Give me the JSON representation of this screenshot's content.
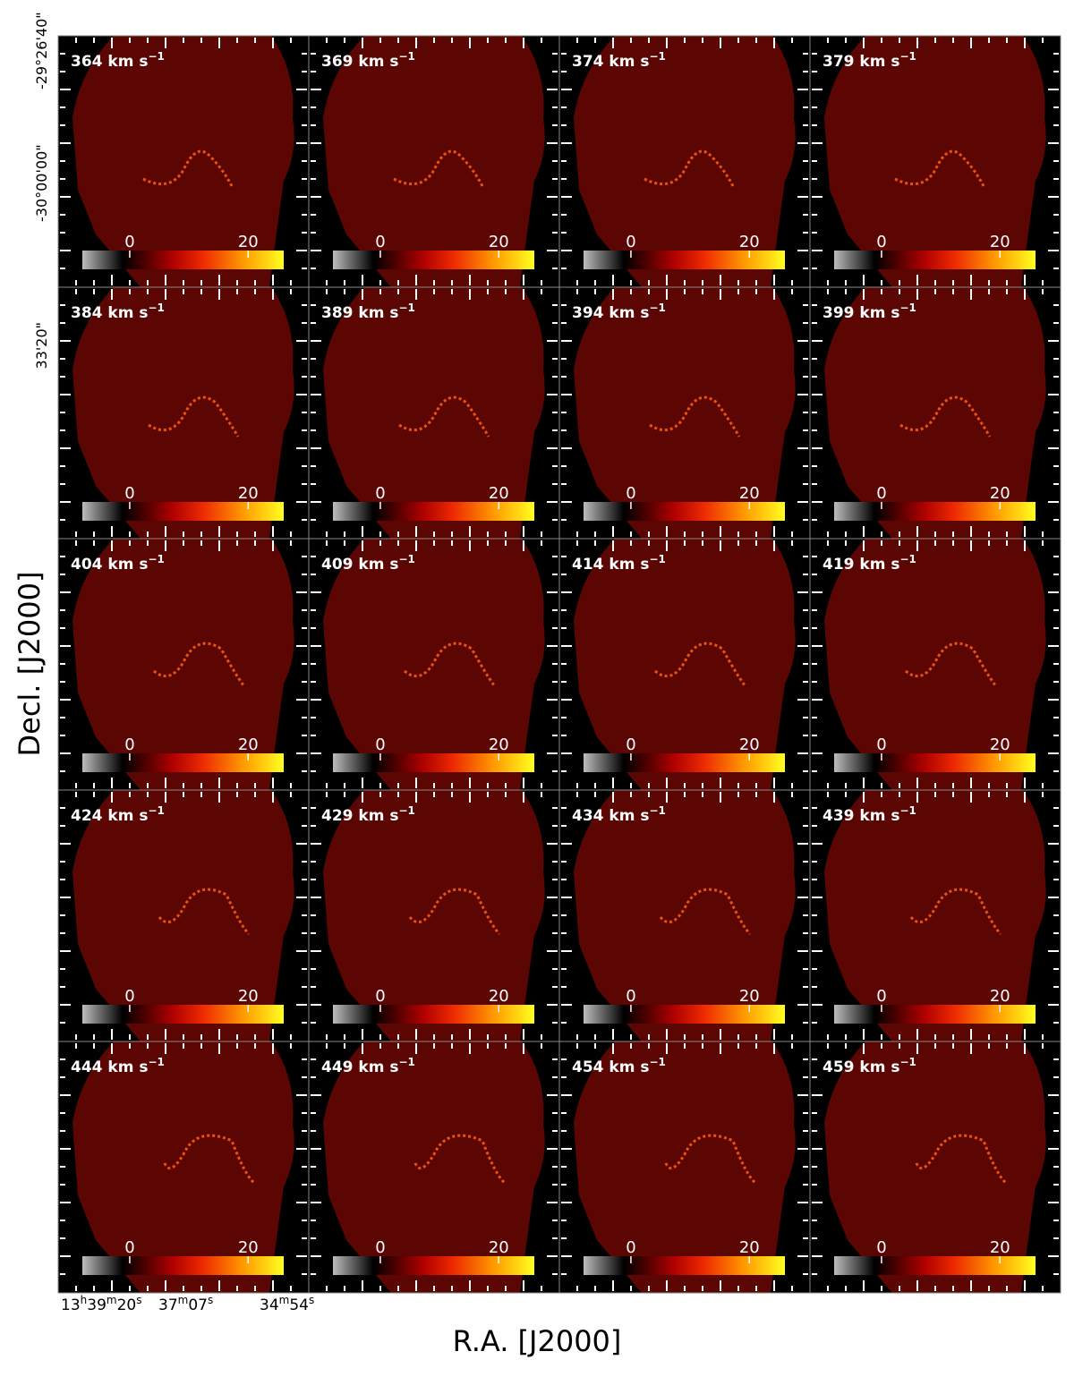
{
  "figure": {
    "x_label": "R.A. [J2000]",
    "y_label": "Decl. [J2000]",
    "ra_ticks": [
      [
        "13",
        "h",
        "39",
        "m",
        "20",
        "s"
      ],
      [
        "37",
        "m",
        "07",
        "s"
      ],
      [
        "34",
        "m",
        "54",
        "s"
      ]
    ],
    "dec_ticks": [
      "-30°00'00\"",
      "-29°26'40\"",
      "33'20\""
    ],
    "colorbar_lim": [
      -8,
      26
    ],
    "colorbar_ticks": [
      0,
      20
    ],
    "panels": [
      {
        "velocity": 364,
        "unit": "km s",
        "exponent": "−1"
      },
      {
        "velocity": 369,
        "unit": "km s",
        "exponent": "−1"
      },
      {
        "velocity": 374,
        "unit": "km s",
        "exponent": "−1"
      },
      {
        "velocity": 379,
        "unit": "km s",
        "exponent": "−1"
      },
      {
        "velocity": 384,
        "unit": "km s",
        "exponent": "−1"
      },
      {
        "velocity": 389,
        "unit": "km s",
        "exponent": "−1"
      },
      {
        "velocity": 394,
        "unit": "km s",
        "exponent": "−1"
      },
      {
        "velocity": 399,
        "unit": "km s",
        "exponent": "−1"
      },
      {
        "velocity": 404,
        "unit": "km s",
        "exponent": "−1"
      },
      {
        "velocity": 409,
        "unit": "km s",
        "exponent": "−1"
      },
      {
        "velocity": 414,
        "unit": "km s",
        "exponent": "−1"
      },
      {
        "velocity": 419,
        "unit": "km s",
        "exponent": "−1"
      },
      {
        "velocity": 424,
        "unit": "km s",
        "exponent": "−1"
      },
      {
        "velocity": 429,
        "unit": "km s",
        "exponent": "−1"
      },
      {
        "velocity": 434,
        "unit": "km s",
        "exponent": "−1"
      },
      {
        "velocity": 439,
        "unit": "km s",
        "exponent": "−1"
      },
      {
        "velocity": 444,
        "unit": "km s",
        "exponent": "−1"
      },
      {
        "velocity": 449,
        "unit": "km s",
        "exponent": "−1"
      },
      {
        "velocity": 454,
        "unit": "km s",
        "exponent": "−1"
      },
      {
        "velocity": 459,
        "unit": "km s",
        "exponent": "−1"
      }
    ]
  }
}
